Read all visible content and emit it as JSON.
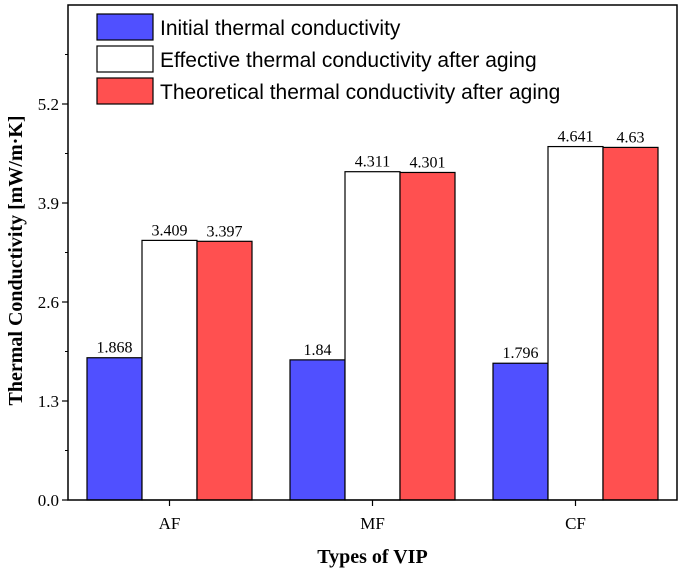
{
  "chart_data": {
    "type": "bar",
    "title": "",
    "xlabel": "Types of VIP",
    "ylabel": "Thermal Conductivity [mW/m·K]",
    "categories": [
      "AF",
      "MF",
      "CF"
    ],
    "ylim": [
      0,
      6.5
    ],
    "yticks": [
      0.0,
      1.3,
      2.6,
      3.9,
      5.2
    ],
    "ytick_labels": [
      "0.0",
      "1.3",
      "2.6",
      "3.9",
      "5.2"
    ],
    "legend_position": "top-left",
    "series": [
      {
        "name": "Initial thermal conductivity",
        "color": "#5050ff",
        "values": [
          1.868,
          1.84,
          1.796
        ],
        "labels": [
          "1.868",
          "1.84",
          "1.796"
        ]
      },
      {
        "name": "Effective thermal conductivity after aging",
        "color": "#ffffff",
        "values": [
          3.409,
          4.311,
          4.641
        ],
        "labels": [
          "3.409",
          "4.311",
          "4.641"
        ]
      },
      {
        "name": "Theoretical thermal conductivity after aging",
        "color": "#ff5050",
        "values": [
          3.397,
          4.301,
          4.63
        ],
        "labels": [
          "3.397",
          "4.301",
          "4.63"
        ]
      }
    ]
  }
}
